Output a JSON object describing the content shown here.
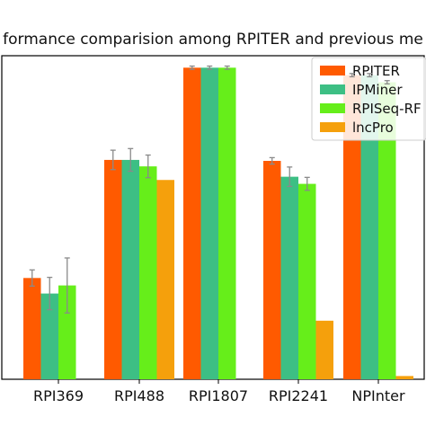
{
  "chart_data": {
    "type": "bar",
    "title": "formance comparision among RPITER and previous me",
    "xlabel": "",
    "ylabel": "",
    "ylim": [
      0.0,
      1.0
    ],
    "grid": false,
    "legend_position": "top-right",
    "categories": [
      "RPI369",
      "RPI488",
      "RPI1807",
      "RPI2241",
      "NPInter"
    ],
    "series": [
      {
        "name": "RPITER",
        "color": "#ff5a00",
        "values": [
          0.313,
          0.678,
          0.963,
          0.675,
          0.94
        ],
        "errors": [
          0.025,
          0.03,
          0.005,
          0.01,
          0.005
        ]
      },
      {
        "name": "IPMiner",
        "color": "#3dbf84",
        "values": [
          0.265,
          0.678,
          0.963,
          0.626,
          0.94
        ],
        "errors": [
          0.05,
          0.035,
          0.005,
          0.03,
          0.005
        ]
      },
      {
        "name": "RPISeq-RF",
        "color": "#66ee1a",
        "values": [
          0.29,
          0.658,
          0.963,
          0.604,
          0.918
        ],
        "errors": [
          0.085,
          0.035,
          0.005,
          0.02,
          0.005
        ]
      },
      {
        "name": "lncPro",
        "color": "#f5a00c",
        "values": [
          0.0,
          0.616,
          0.0,
          0.181,
          0.01
        ],
        "errors": [
          0,
          0,
          0,
          0,
          0
        ]
      }
    ]
  }
}
